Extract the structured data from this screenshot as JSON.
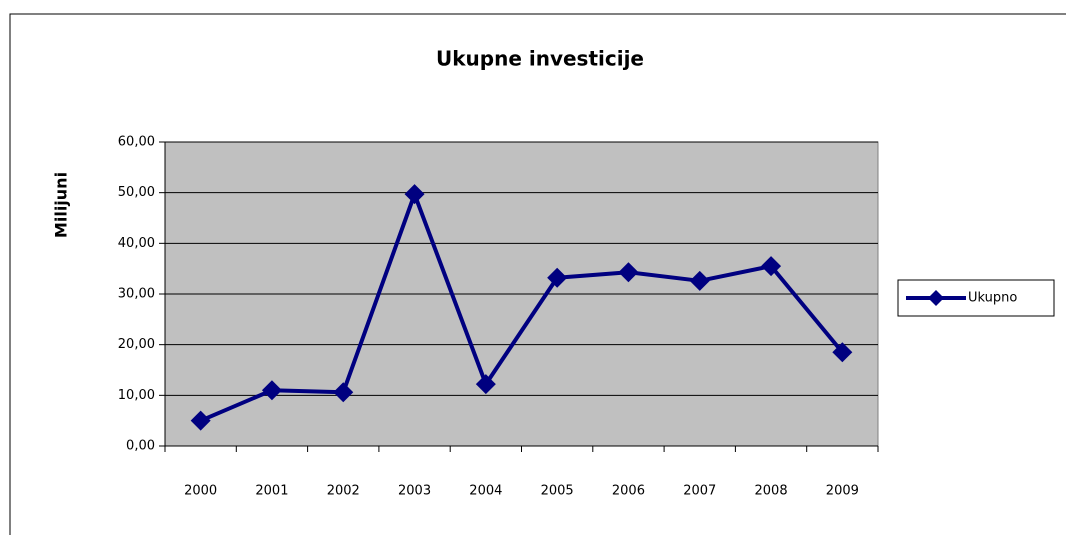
{
  "chart_data": {
    "type": "line",
    "title": "Ukupne investicije",
    "y_label": "Milijuni",
    "categories": [
      "2000",
      "2001",
      "2002",
      "2003",
      "2004",
      "2005",
      "2006",
      "2007",
      "2008",
      "2009"
    ],
    "series": [
      {
        "name": "Ukupno",
        "color": "#000080",
        "values": [
          5.0,
          11.0,
          10.6,
          49.7,
          12.2,
          33.2,
          34.3,
          32.6,
          35.5,
          18.5
        ]
      }
    ],
    "ylim": [
      0,
      60
    ],
    "yticks": [
      {
        "value": 0,
        "label": "0,00"
      },
      {
        "value": 10,
        "label": "10,00"
      },
      {
        "value": 20,
        "label": "20,00"
      },
      {
        "value": 30,
        "label": "30,00"
      },
      {
        "value": 40,
        "label": "40,00"
      },
      {
        "value": 50,
        "label": "50,00"
      },
      {
        "value": 60,
        "label": "60,00"
      }
    ],
    "grid": true,
    "legend": "right",
    "plot_background": "#c0c0c0"
  }
}
